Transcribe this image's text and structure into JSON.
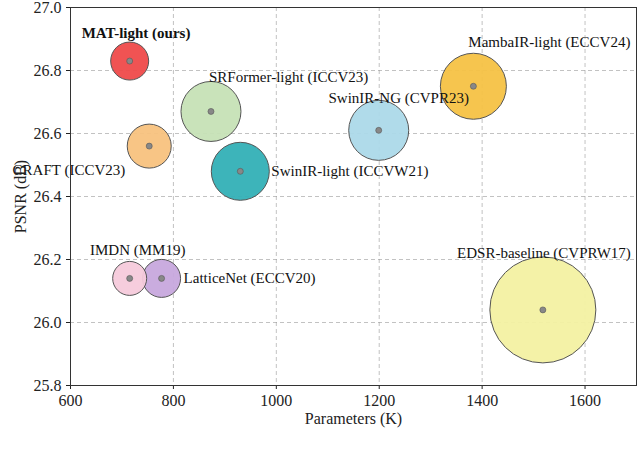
{
  "chart_data": {
    "type": "bubble",
    "xlabel": "Parameters (K)",
    "ylabel": "PSNR (dB)",
    "labels": [
      "MAT-light (ours)",
      "SRFormer-light (ICCV23)",
      "MambaIR-light (ECCV24)",
      "CRAFT (ICCV23)",
      "SwinIR-light (ICCVW21)",
      "SwinIR-NG (CVPR23)",
      "IMDN (MM19)",
      "LatticeNet (ECCV20)",
      "EDSR-baseline (CVPRW17)"
    ],
    "x": [
      715,
      873,
      1383,
      753,
      930,
      1199,
      715,
      777,
      1518
    ],
    "y": [
      26.83,
      26.67,
      26.75,
      26.56,
      26.48,
      26.61,
      26.14,
      26.14,
      26.04
    ],
    "sizes": [
      19,
      30,
      33,
      22,
      29,
      30,
      17,
      19,
      53
    ],
    "colors": [
      "#ef4a4a",
      "#c6e2b6",
      "#f6c244",
      "#f8c27e",
      "#33b0b6",
      "#acd9e9",
      "#f6cadb",
      "#c7a8dd",
      "#f3f1a2"
    ],
    "xlim": [
      600,
      1700
    ],
    "xticks": [
      600,
      800,
      1000,
      1200,
      1400,
      1600
    ],
    "ylim": [
      25.8,
      27.0
    ],
    "yticks": [
      25.8,
      {
        "value": 26.0,
        "label": "26.0"
      },
      26.2,
      26.4,
      26.6,
      26.8,
      {
        "value": 27.0,
        "label": "27.0"
      }
    ],
    "grid": true
  }
}
